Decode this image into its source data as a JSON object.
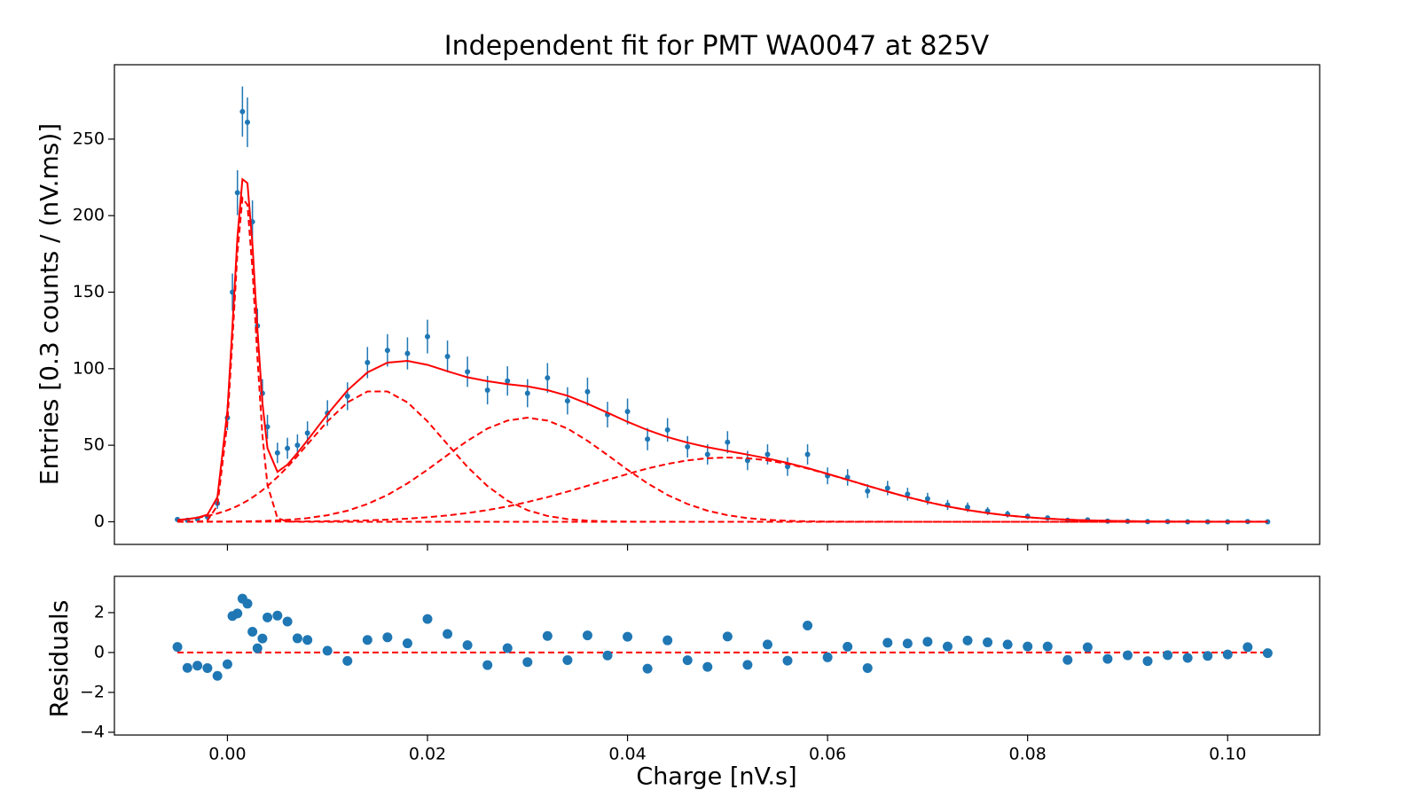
{
  "chart_data": [
    {
      "type": "errorbar",
      "title": "Independent fit for PMT WA0047 at 825V",
      "ylabel": "Entries [0.3 counts / (nV.ms)]",
      "color": "#1f77b4",
      "x": [
        -0.005,
        -0.004,
        -0.003,
        -0.002,
        -0.001,
        0,
        0.0005,
        0.001,
        0.0015,
        0.002,
        0.0025,
        0.003,
        0.0035,
        0.004,
        0.005,
        0.006,
        0.007,
        0.008,
        0.01,
        0.012,
        0.014,
        0.016,
        0.018,
        0.02,
        0.022,
        0.024,
        0.026,
        0.028,
        0.03,
        0.032,
        0.034,
        0.036,
        0.038,
        0.04,
        0.042,
        0.044,
        0.046,
        0.048,
        0.05,
        0.052,
        0.054,
        0.056,
        0.058,
        0.06,
        0.062,
        0.064,
        0.066,
        0.068,
        0.07,
        0.072,
        0.074,
        0.076,
        0.078,
        0.08,
        0.082,
        0.084,
        0.086,
        0.088,
        0.09,
        0.092,
        0.094,
        0.096,
        0.098,
        0.1,
        0.102,
        0.104
      ],
      "values": [
        1.5,
        1.0,
        1.8,
        3.2,
        12.0,
        68,
        150,
        215,
        268,
        261,
        196,
        128,
        84,
        62,
        45,
        48,
        50,
        58,
        71,
        82,
        104,
        112,
        110,
        121,
        108,
        98,
        86,
        92,
        84,
        94,
        79,
        85,
        70,
        72,
        54,
        60,
        49,
        44,
        52,
        40,
        44,
        36,
        44,
        30,
        29,
        20,
        22,
        18,
        15,
        11,
        9.5,
        7,
        5,
        3.5,
        2.5,
        1.0,
        1.2,
        0.4,
        0.3,
        0.1,
        0.1,
        0,
        0,
        0,
        0.1,
        0
      ],
      "errors": [
        1.2,
        1.0,
        1.3,
        1.8,
        3.5,
        8.2,
        12.2,
        14.7,
        16.4,
        16.2,
        14.0,
        11.3,
        9.2,
        7.9,
        6.7,
        6.9,
        7.1,
        7.6,
        8.4,
        9.1,
        10.2,
        10.6,
        10.5,
        11.0,
        10.4,
        9.9,
        9.3,
        9.6,
        9.2,
        9.7,
        8.9,
        9.2,
        8.4,
        8.5,
        7.3,
        7.7,
        7.0,
        6.6,
        7.2,
        6.3,
        6.6,
        6.0,
        6.6,
        5.5,
        5.4,
        4.5,
        4.7,
        4.2,
        3.9,
        3.3,
        3.1,
        2.6,
        2.2,
        1.9,
        1.6,
        1.0,
        1.1,
        0.6,
        0.5,
        0.3,
        0.3,
        0.3,
        0.3,
        0.3,
        0.3,
        0.3
      ],
      "fits": [
        {
          "color": "#ff0000",
          "dash": false,
          "values": [
            1.16,
            1.77,
            2.66,
            4.6,
            16.11,
            72.81,
            127.66,
            186.13,
            223.79,
            221.25,
            181.41,
            125.6,
            77.6,
            48.11,
            32.61,
            37.3,
            44.93,
            53.22,
            70.24,
            85.81,
            97.61,
            103.97,
            105.12,
            102.53,
            98.32,
            94.38,
            91.84,
            89.9,
            88.45,
            85.98,
            82.34,
            77.13,
            71.28,
            65.3,
            59.93,
            55.31,
            51.7,
            48.72,
            46.27,
            43.89,
            41.36,
            38.43,
            35.1,
            31.33,
            27.46,
            23.52,
            19.71,
            16.1,
            12.9,
            10.0,
            7.64,
            5.68,
            4.12,
            2.93,
            2.02,
            1.37,
            0.91,
            0.59,
            0.37,
            0.23,
            0.14,
            0.08,
            0.05,
            0.03,
            0.02,
            0.01
          ]
        },
        {
          "color": "#ff0000",
          "dash": true,
          "values": [
            0,
            0,
            0.02,
            0.75,
            10.6,
            65.1,
            118.6,
            175.6,
            211.5,
            207.1,
            165.1,
            107,
            56.4,
            24.1,
            2.4,
            0.1,
            0,
            0,
            0,
            0,
            0,
            0,
            0,
            0,
            0,
            0,
            0,
            0,
            0,
            0,
            0,
            0,
            0,
            0,
            0,
            0,
            0,
            0,
            0,
            0,
            0,
            0,
            0,
            0,
            0,
            0,
            0,
            0,
            0,
            0,
            0,
            0,
            0,
            0,
            0,
            0,
            0,
            0,
            0,
            0,
            0,
            0,
            0,
            0,
            0,
            0
          ]
        },
        {
          "color": "#ff0000",
          "dash": true,
          "values": [
            1.14,
            1.74,
            2.59,
            3.78,
            5.4,
            7.55,
            8.86,
            10.3,
            12.0,
            13.8,
            15.9,
            18.1,
            20.6,
            23.3,
            29.2,
            35.8,
            43.0,
            50.6,
            65.6,
            78.0,
            85.1,
            85.1,
            78.0,
            65.6,
            50.6,
            35.8,
            23.3,
            13.8,
            7.55,
            3.78,
            1.74,
            0.73,
            0.28,
            0.1,
            0.03,
            0.01,
            0,
            0,
            0,
            0,
            0,
            0,
            0,
            0,
            0,
            0,
            0,
            0,
            0,
            0,
            0,
            0,
            0,
            0,
            0,
            0,
            0,
            0,
            0,
            0,
            0,
            0,
            0,
            0,
            0,
            0
          ]
        },
        {
          "color": "#ff0000",
          "dash": true,
          "values": [
            0.01,
            0.02,
            0.04,
            0.06,
            0.09,
            0.13,
            0.17,
            0.2,
            0.25,
            0.3,
            0.36,
            0.44,
            0.53,
            0.63,
            0.9,
            1.26,
            1.75,
            2.39,
            4.27,
            7.22,
            11.6,
            17.5,
            25.1,
            34.0,
            43.6,
            52.9,
            60.9,
            66.1,
            68,
            66.1,
            60.9,
            52.9,
            43.6,
            34.0,
            25.1,
            17.5,
            11.6,
            7.22,
            4.27,
            2.39,
            1.26,
            0.63,
            0.3,
            0.13,
            0.06,
            0.02,
            0.01,
            0,
            0,
            0,
            0,
            0,
            0,
            0,
            0,
            0,
            0,
            0,
            0,
            0,
            0,
            0,
            0,
            0,
            0,
            0
          ]
        },
        {
          "color": "#ff0000",
          "dash": true,
          "values": [
            0.01,
            0.01,
            0.01,
            0.01,
            0.02,
            0.03,
            0.03,
            0.03,
            0.04,
            0.05,
            0.05,
            0.06,
            0.07,
            0.08,
            0.11,
            0.14,
            0.18,
            0.23,
            0.37,
            0.59,
            0.91,
            1.37,
            2.02,
            2.93,
            4.12,
            5.68,
            7.64,
            10.0,
            12.9,
            16.1,
            19.7,
            23.5,
            27.4,
            31.2,
            34.8,
            37.8,
            40.1,
            41.5,
            42,
            41.5,
            40.1,
            37.8,
            34.8,
            31.2,
            27.4,
            23.5,
            19.7,
            16.1,
            12.9,
            10.0,
            7.64,
            5.68,
            4.12,
            2.93,
            2.02,
            1.37,
            0.91,
            0.59,
            0.37,
            0.23,
            0.14,
            0.08,
            0.05,
            0.03,
            0.02,
            0.01
          ]
        }
      ],
      "xlim": [
        -0.0113,
        0.1092
      ],
      "ylim": [
        -14.8,
        298.6
      ],
      "xticks": [
        0,
        0.02,
        0.04,
        0.06,
        0.08,
        0.1
      ],
      "xticklabels": false,
      "yticks": [
        0,
        50,
        100,
        150,
        200,
        250
      ]
    },
    {
      "type": "scatter",
      "ylabel": "Residuals",
      "xlabel": "Charge [nV.s]",
      "color": "#1f77b4",
      "x": [
        -0.005,
        -0.004,
        -0.003,
        -0.002,
        -0.001,
        0,
        0.0005,
        0.001,
        0.0015,
        0.002,
        0.0025,
        0.003,
        0.0035,
        0.004,
        0.005,
        0.006,
        0.007,
        0.008,
        0.01,
        0.012,
        0.014,
        0.016,
        0.018,
        0.02,
        0.022,
        0.024,
        0.026,
        0.028,
        0.03,
        0.032,
        0.034,
        0.036,
        0.038,
        0.04,
        0.042,
        0.044,
        0.046,
        0.048,
        0.05,
        0.052,
        0.054,
        0.056,
        0.058,
        0.06,
        0.062,
        0.064,
        0.066,
        0.068,
        0.07,
        0.072,
        0.074,
        0.076,
        0.078,
        0.08,
        0.082,
        0.084,
        0.086,
        0.088,
        0.09,
        0.092,
        0.094,
        0.096,
        0.098,
        0.1,
        0.102,
        0.104
      ],
      "values": [
        0.28,
        -0.77,
        -0.66,
        -0.78,
        -1.17,
        -0.59,
        1.83,
        1.96,
        2.7,
        2.45,
        1.04,
        0.21,
        0.7,
        1.76,
        1.85,
        1.55,
        0.71,
        0.63,
        0.09,
        -0.42,
        0.63,
        0.76,
        0.46,
        1.68,
        0.93,
        0.37,
        -0.63,
        0.22,
        -0.48,
        0.83,
        -0.38,
        0.86,
        -0.15,
        0.79,
        -0.81,
        0.61,
        -0.39,
        -0.72,
        0.8,
        -0.62,
        0.4,
        -0.41,
        1.35,
        -0.24,
        0.29,
        -0.78,
        0.49,
        0.45,
        0.54,
        0.3,
        0.6,
        0.51,
        0.4,
        0.3,
        0.3,
        -0.37,
        0.26,
        -0.32,
        -0.14,
        -0.43,
        -0.13,
        -0.27,
        -0.17,
        -0.1,
        0.27,
        -0.03
      ],
      "hline": {
        "value": 0,
        "color": "#ff0000",
        "dash": true
      },
      "xlim": [
        -0.0113,
        0.1092
      ],
      "ylim": [
        -4.14,
        3.82
      ],
      "xticks": [
        {
          "value": 0,
          "label": "0.00"
        },
        {
          "value": 0.02,
          "label": "0.02"
        },
        {
          "value": 0.04,
          "label": "0.04"
        },
        {
          "value": 0.06,
          "label": "0.06"
        },
        {
          "value": 0.08,
          "label": "0.08"
        },
        {
          "value": 0.1,
          "label": "0.10"
        }
      ],
      "yticks": [
        {
          "value": -4,
          "label": "−4"
        },
        {
          "value": -2,
          "label": "−2"
        },
        0,
        2
      ]
    }
  ]
}
